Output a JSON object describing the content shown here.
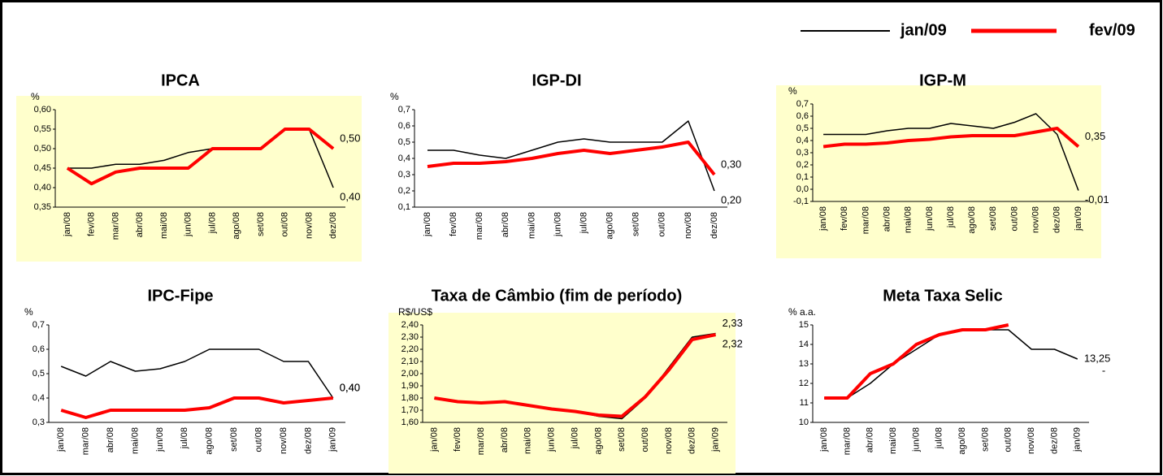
{
  "chart_data": [
    {
      "type": "line",
      "title": "IPCA",
      "unit": "%",
      "background": "#ffffcc",
      "categories": [
        "jan/08",
        "fev/08",
        "mar/08",
        "abr/08",
        "mai/08",
        "jun/08",
        "jul/08",
        "ago/08",
        "set/08",
        "out/08",
        "nov/08",
        "dez/08"
      ],
      "ylim": [
        0.35,
        0.6
      ],
      "yticks": [
        {
          "value": 0.35,
          "label": "0,35"
        },
        {
          "value": 0.4,
          "label": "0,40"
        },
        {
          "value": 0.45,
          "label": "0,45"
        },
        {
          "value": 0.5,
          "label": "0,50"
        },
        {
          "value": 0.55,
          "label": "0,55"
        },
        {
          "value": 0.6,
          "label": "0,60"
        }
      ],
      "series": [
        {
          "name": "jan/09",
          "color": "#000000",
          "values": [
            0.45,
            0.45,
            0.46,
            0.46,
            0.47,
            0.49,
            0.5,
            0.5,
            0.5,
            0.55,
            0.55,
            0.4
          ],
          "value_labels": [
            null,
            null,
            null,
            null,
            null,
            null,
            null,
            null,
            null,
            null,
            null,
            "0,40"
          ]
        },
        {
          "name": "fev/09",
          "color": "#ff0000",
          "values": [
            0.45,
            0.41,
            0.44,
            0.45,
            0.45,
            0.45,
            0.5,
            0.5,
            0.5,
            0.55,
            0.55,
            0.5
          ],
          "value_labels": [
            null,
            null,
            null,
            null,
            null,
            null,
            null,
            null,
            null,
            null,
            null,
            "0,50"
          ]
        }
      ]
    },
    {
      "type": "line",
      "title": "IGP-DI",
      "unit": "%",
      "background": "#ffffff",
      "categories": [
        "jan/08",
        "fev/08",
        "mar/08",
        "abr/08",
        "mai/08",
        "jun/08",
        "jul/08",
        "ago/08",
        "set/08",
        "out/08",
        "nov/08",
        "dez/08"
      ],
      "ylim": [
        0.1,
        0.7
      ],
      "yticks": [
        {
          "value": 0.1,
          "label": "0,1"
        },
        {
          "value": 0.2,
          "label": "0,2"
        },
        {
          "value": 0.3,
          "label": "0,3"
        },
        {
          "value": 0.4,
          "label": "0,4"
        },
        {
          "value": 0.5,
          "label": "0,5"
        },
        {
          "value": 0.6,
          "label": "0,6"
        },
        {
          "value": 0.7,
          "label": "0,7"
        }
      ],
      "series": [
        {
          "name": "jan/09",
          "color": "#000000",
          "values": [
            0.45,
            0.45,
            0.42,
            0.4,
            0.45,
            0.5,
            0.52,
            0.5,
            0.5,
            0.5,
            0.63,
            0.2
          ],
          "value_labels": [
            null,
            null,
            null,
            null,
            null,
            null,
            null,
            null,
            null,
            null,
            null,
            "0,20"
          ]
        },
        {
          "name": "fev/09",
          "color": "#ff0000",
          "values": [
            0.35,
            0.37,
            0.37,
            0.38,
            0.4,
            0.43,
            0.45,
            0.43,
            0.45,
            0.47,
            0.5,
            0.3
          ],
          "value_labels": [
            null,
            null,
            null,
            null,
            null,
            null,
            null,
            null,
            null,
            null,
            null,
            "0,30"
          ]
        }
      ]
    },
    {
      "type": "line",
      "title": "IGP-M",
      "unit": "%",
      "background": "#ffffcc",
      "categories": [
        "jan/08",
        "fev/08",
        "mar/08",
        "abr/08",
        "mai/08",
        "jun/08",
        "jul/08",
        "ago/08",
        "set/08",
        "out/08",
        "nov/08",
        "dez/08",
        "jan/09"
      ],
      "ylim": [
        -0.1,
        0.7
      ],
      "yticks": [
        {
          "value": -0.1,
          "label": "-0,1"
        },
        {
          "value": 0,
          "label": "0,0"
        },
        {
          "value": 0.1,
          "label": "0,1"
        },
        {
          "value": 0.2,
          "label": "0,2"
        },
        {
          "value": 0.3,
          "label": "0,3"
        },
        {
          "value": 0.4,
          "label": "0,4"
        },
        {
          "value": 0.5,
          "label": "0,5"
        },
        {
          "value": 0.6,
          "label": "0,6"
        },
        {
          "value": 0.7,
          "label": "0,7"
        }
      ],
      "series": [
        {
          "name": "jan/09",
          "color": "#000000",
          "values": [
            0.45,
            0.45,
            0.45,
            0.48,
            0.5,
            0.5,
            0.54,
            0.52,
            0.5,
            0.55,
            0.62,
            0.45,
            -0.01
          ],
          "value_labels": [
            null,
            null,
            null,
            null,
            null,
            null,
            null,
            null,
            null,
            null,
            null,
            null,
            "-0,01"
          ]
        },
        {
          "name": "fev/09",
          "color": "#ff0000",
          "values": [
            0.35,
            0.37,
            0.37,
            0.38,
            0.4,
            0.41,
            0.43,
            0.44,
            0.44,
            0.44,
            0.47,
            0.5,
            0.35
          ],
          "value_labels": [
            null,
            null,
            null,
            null,
            null,
            null,
            null,
            null,
            null,
            null,
            null,
            null,
            "0,35"
          ]
        }
      ]
    },
    {
      "type": "line",
      "title": "IPC-Fipe",
      "unit": "%",
      "background": "#ffffff",
      "categories": [
        "jan/08",
        "mar/08",
        "abr/08",
        "mai/08",
        "jun/08",
        "jul/08",
        "ago/08",
        "set/08",
        "out/08",
        "nov/08",
        "dez/08",
        "jan/09"
      ],
      "ylim": [
        0.3,
        0.7
      ],
      "yticks": [
        {
          "value": 0.3,
          "label": "0,3"
        },
        {
          "value": 0.4,
          "label": "0,4"
        },
        {
          "value": 0.5,
          "label": "0,5"
        },
        {
          "value": 0.6,
          "label": "0,6"
        },
        {
          "value": 0.7,
          "label": "0,7"
        }
      ],
      "series": [
        {
          "name": "jan/09",
          "color": "#000000",
          "values": [
            0.53,
            0.49,
            0.55,
            0.51,
            0.52,
            0.55,
            0.6,
            0.6,
            0.6,
            0.55,
            0.55,
            0.4
          ],
          "value_labels": [
            null,
            null,
            null,
            null,
            null,
            null,
            null,
            null,
            null,
            null,
            null,
            "0,40"
          ]
        },
        {
          "name": "fev/09",
          "color": "#ff0000",
          "values": [
            0.35,
            0.32,
            0.35,
            0.35,
            0.35,
            0.35,
            0.36,
            0.4,
            0.4,
            0.38,
            0.39,
            0.4
          ],
          "value_labels": [
            null,
            null,
            null,
            null,
            null,
            null,
            null,
            null,
            null,
            null,
            null,
            "0,40"
          ]
        }
      ]
    },
    {
      "type": "line",
      "title": "Taxa de Câmbio (fim de período)",
      "unit": "R$/US$",
      "background": "#ffffcc",
      "categories": [
        "jan/08",
        "fev/08",
        "mar/08",
        "abr/08",
        "mai/08",
        "jun/08",
        "jul/08",
        "ago/08",
        "set/08",
        "out/08",
        "nov/08",
        "dez/08",
        "jan/09"
      ],
      "ylim": [
        1.6,
        2.4
      ],
      "yticks": [
        {
          "value": 1.6,
          "label": "1,60"
        },
        {
          "value": 1.7,
          "label": "1,70"
        },
        {
          "value": 1.8,
          "label": "1,80"
        },
        {
          "value": 1.9,
          "label": "1,90"
        },
        {
          "value": 2.0,
          "label": "2,00"
        },
        {
          "value": 2.1,
          "label": "2,10"
        },
        {
          "value": 2.2,
          "label": "2,20"
        },
        {
          "value": 2.3,
          "label": "2,30"
        },
        {
          "value": 2.4,
          "label": "2,40"
        }
      ],
      "series": [
        {
          "name": "jan/09",
          "color": "#000000",
          "values": [
            1.8,
            1.77,
            1.76,
            1.77,
            1.74,
            1.71,
            1.69,
            1.65,
            1.63,
            1.8,
            2.05,
            2.3,
            2.33
          ],
          "value_labels": [
            null,
            null,
            null,
            null,
            null,
            null,
            null,
            null,
            null,
            null,
            null,
            null,
            "2,33"
          ]
        },
        {
          "name": "fev/09",
          "color": "#ff0000",
          "values": [
            1.8,
            1.77,
            1.76,
            1.77,
            1.74,
            1.71,
            1.69,
            1.66,
            1.65,
            1.81,
            2.03,
            2.28,
            2.32
          ],
          "value_labels": [
            null,
            null,
            null,
            null,
            null,
            null,
            null,
            null,
            null,
            null,
            null,
            null,
            "2,32"
          ]
        }
      ]
    },
    {
      "type": "line",
      "title": "Meta Taxa Selic",
      "unit": "% a.a.",
      "background": "#ffffff",
      "annotation": "-",
      "categories": [
        "jan/08",
        "mar/08",
        "abr/08",
        "mai/08",
        "jun/08",
        "jul/08",
        "ago/08",
        "set/08",
        "out/08",
        "nov/08",
        "dez/08",
        "jan/09"
      ],
      "ylim": [
        10,
        15
      ],
      "yticks": [
        10,
        11,
        12,
        13,
        14,
        15
      ],
      "series": [
        {
          "name": "jan/09",
          "color": "#000000",
          "values": [
            11.25,
            11.25,
            12.0,
            13.0,
            13.75,
            14.5,
            14.75,
            14.75,
            14.75,
            13.75,
            13.75,
            13.25
          ],
          "value_labels": [
            null,
            null,
            null,
            null,
            null,
            null,
            null,
            null,
            null,
            null,
            null,
            "13,25"
          ]
        },
        {
          "name": "fev/09",
          "color": "#ff0000",
          "values": [
            11.25,
            11.25,
            12.5,
            13.0,
            14.0,
            14.5,
            14.75,
            14.75,
            15.0,
            null,
            null,
            null
          ]
        }
      ]
    }
  ]
}
